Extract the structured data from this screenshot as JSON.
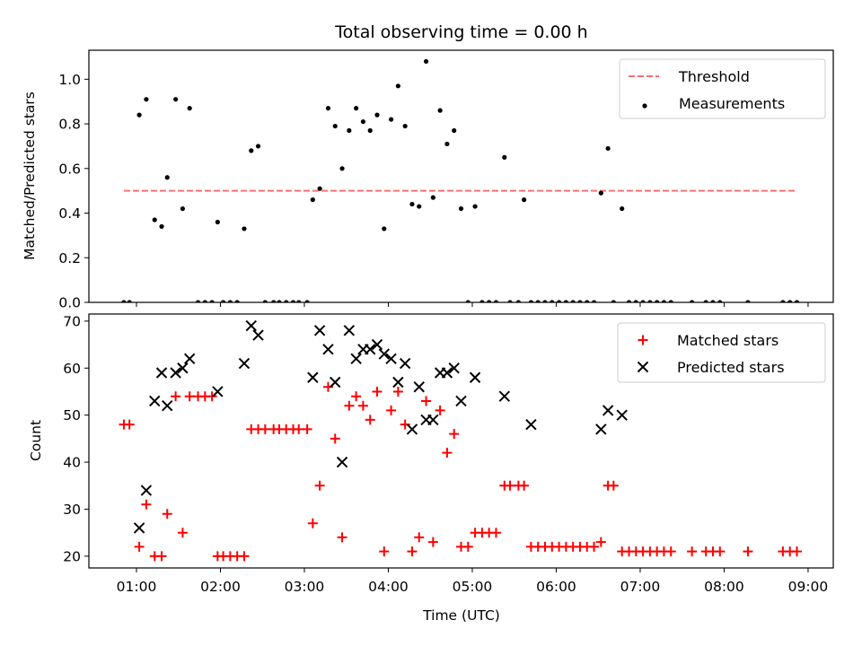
{
  "title": "Total observing time = 0.00 h",
  "xlabel": "Time (UTC)",
  "x_tick_labels": [
    "01:00",
    "02:00",
    "03:00",
    "04:00",
    "05:00",
    "06:00",
    "07:00",
    "08:00",
    "09:00"
  ],
  "chart_data": [
    {
      "type": "scatter",
      "ylabel": "Matched/Predicted stars",
      "xlim": [
        "00:26",
        "09:18"
      ],
      "ylim": [
        0,
        1.13
      ],
      "y_ticks": [
        "0.0",
        "0.2",
        "0.4",
        "0.6",
        "0.8",
        "1.0"
      ],
      "legend_position": "top-right",
      "legend": [
        "Threshold",
        "Measurements"
      ],
      "threshold": {
        "name": "Threshold",
        "y": 0.5,
        "x_start": "00:51",
        "x_end": "08:52",
        "color": "#ff7070",
        "style": "dashed"
      },
      "series": [
        {
          "name": "Measurements",
          "color": "#000000",
          "points": [
            [
              "00:51",
              0
            ],
            [
              "00:55",
              0
            ],
            [
              "01:02",
              0.84
            ],
            [
              "01:07",
              0.91
            ],
            [
              "01:13",
              0.37
            ],
            [
              "01:18",
              0.34
            ],
            [
              "01:22",
              0.56
            ],
            [
              "01:28",
              0.91
            ],
            [
              "01:33",
              0.42
            ],
            [
              "01:38",
              0.87
            ],
            [
              "01:44",
              0
            ],
            [
              "01:49",
              0
            ],
            [
              "01:54",
              0
            ],
            [
              "01:58",
              0.36
            ],
            [
              "02:02",
              0
            ],
            [
              "02:07",
              0
            ],
            [
              "02:12",
              0
            ],
            [
              "02:17",
              0.33
            ],
            [
              "02:22",
              0.68
            ],
            [
              "02:27",
              0.7
            ],
            [
              "02:32",
              0
            ],
            [
              "02:38",
              0
            ],
            [
              "02:42",
              0
            ],
            [
              "02:47",
              0
            ],
            [
              "02:52",
              0
            ],
            [
              "02:56",
              0
            ],
            [
              "03:02",
              0
            ],
            [
              "03:06",
              0.46
            ],
            [
              "03:11",
              0.51
            ],
            [
              "03:17",
              0.87
            ],
            [
              "03:22",
              0.79
            ],
            [
              "03:27",
              0.6
            ],
            [
              "03:32",
              0.77
            ],
            [
              "03:37",
              0.87
            ],
            [
              "03:42",
              0.81
            ],
            [
              "03:47",
              0.77
            ],
            [
              "03:52",
              0.84
            ],
            [
              "03:57",
              0.33
            ],
            [
              "04:02",
              0.82
            ],
            [
              "04:07",
              0.97
            ],
            [
              "04:12",
              0.79
            ],
            [
              "04:17",
              0.44
            ],
            [
              "04:22",
              0.43
            ],
            [
              "04:27",
              1.08
            ],
            [
              "04:32",
              0.47
            ],
            [
              "04:37",
              0.86
            ],
            [
              "04:42",
              0.71
            ],
            [
              "04:47",
              0.77
            ],
            [
              "04:52",
              0.42
            ],
            [
              "04:57",
              0
            ],
            [
              "05:02",
              0.43
            ],
            [
              "05:07",
              0
            ],
            [
              "05:12",
              0
            ],
            [
              "05:17",
              0
            ],
            [
              "05:23",
              0.65
            ],
            [
              "05:27",
              0
            ],
            [
              "05:33",
              0
            ],
            [
              "05:37",
              0.46
            ],
            [
              "05:42",
              0
            ],
            [
              "05:47",
              0
            ],
            [
              "05:52",
              0
            ],
            [
              "05:57",
              0
            ],
            [
              "06:02",
              0
            ],
            [
              "06:07",
              0
            ],
            [
              "06:12",
              0
            ],
            [
              "06:17",
              0
            ],
            [
              "06:22",
              0
            ],
            [
              "06:27",
              0
            ],
            [
              "06:32",
              0.49
            ],
            [
              "06:37",
              0.69
            ],
            [
              "06:41",
              0
            ],
            [
              "06:47",
              0.42
            ],
            [
              "06:52",
              0
            ],
            [
              "06:57",
              0
            ],
            [
              "07:02",
              0
            ],
            [
              "07:07",
              0
            ],
            [
              "07:12",
              0
            ],
            [
              "07:17",
              0
            ],
            [
              "07:22",
              0
            ],
            [
              "07:37",
              0
            ],
            [
              "07:47",
              0
            ],
            [
              "07:52",
              0
            ],
            [
              "07:57",
              0
            ],
            [
              "08:17",
              0
            ],
            [
              "08:42",
              0
            ],
            [
              "08:47",
              0
            ],
            [
              "08:52",
              0
            ]
          ]
        }
      ]
    },
    {
      "type": "scatter",
      "ylabel": "Count",
      "xlim": [
        "00:26",
        "09:18"
      ],
      "ylim": [
        17.5,
        71.5
      ],
      "y_ticks": [
        "20",
        "30",
        "40",
        "50",
        "60",
        "70"
      ],
      "legend_position": "top-right",
      "legend": [
        "Matched stars",
        "Predicted stars"
      ],
      "series": [
        {
          "name": "Matched stars",
          "color": "#ff0000",
          "marker": "+",
          "points": [
            [
              "00:51",
              48
            ],
            [
              "00:55",
              48
            ],
            [
              "01:02",
              22
            ],
            [
              "01:07",
              31
            ],
            [
              "01:13",
              20
            ],
            [
              "01:18",
              20
            ],
            [
              "01:22",
              29
            ],
            [
              "01:28",
              54
            ],
            [
              "01:33",
              25
            ],
            [
              "01:38",
              54
            ],
            [
              "01:44",
              54
            ],
            [
              "01:49",
              54
            ],
            [
              "01:54",
              54
            ],
            [
              "01:58",
              20
            ],
            [
              "02:02",
              20
            ],
            [
              "02:07",
              20
            ],
            [
              "02:12",
              20
            ],
            [
              "02:17",
              20
            ],
            [
              "02:22",
              47
            ],
            [
              "02:27",
              47
            ],
            [
              "02:32",
              47
            ],
            [
              "02:38",
              47
            ],
            [
              "02:42",
              47
            ],
            [
              "02:47",
              47
            ],
            [
              "02:52",
              47
            ],
            [
              "02:56",
              47
            ],
            [
              "03:02",
              47
            ],
            [
              "03:06",
              27
            ],
            [
              "03:11",
              35
            ],
            [
              "03:17",
              56
            ],
            [
              "03:22",
              45
            ],
            [
              "03:27",
              24
            ],
            [
              "03:32",
              52
            ],
            [
              "03:37",
              54
            ],
            [
              "03:42",
              52
            ],
            [
              "03:47",
              49
            ],
            [
              "03:52",
              55
            ],
            [
              "03:57",
              21
            ],
            [
              "04:02",
              51
            ],
            [
              "04:07",
              55
            ],
            [
              "04:12",
              48
            ],
            [
              "04:17",
              21
            ],
            [
              "04:22",
              24
            ],
            [
              "04:27",
              53
            ],
            [
              "04:32",
              23
            ],
            [
              "04:37",
              51
            ],
            [
              "04:42",
              42
            ],
            [
              "04:47",
              46
            ],
            [
              "04:52",
              22
            ],
            [
              "04:57",
              22
            ],
            [
              "05:02",
              25
            ],
            [
              "05:07",
              25
            ],
            [
              "05:12",
              25
            ],
            [
              "05:17",
              25
            ],
            [
              "05:23",
              35
            ],
            [
              "05:27",
              35
            ],
            [
              "05:33",
              35
            ],
            [
              "05:37",
              35
            ],
            [
              "05:42",
              22
            ],
            [
              "05:47",
              22
            ],
            [
              "05:52",
              22
            ],
            [
              "05:57",
              22
            ],
            [
              "06:02",
              22
            ],
            [
              "06:07",
              22
            ],
            [
              "06:12",
              22
            ],
            [
              "06:17",
              22
            ],
            [
              "06:22",
              22
            ],
            [
              "06:27",
              22
            ],
            [
              "06:32",
              23
            ],
            [
              "06:37",
              35
            ],
            [
              "06:41",
              35
            ],
            [
              "06:47",
              21
            ],
            [
              "06:52",
              21
            ],
            [
              "06:57",
              21
            ],
            [
              "07:02",
              21
            ],
            [
              "07:07",
              21
            ],
            [
              "07:12",
              21
            ],
            [
              "07:17",
              21
            ],
            [
              "07:22",
              21
            ],
            [
              "07:37",
              21
            ],
            [
              "07:47",
              21
            ],
            [
              "07:52",
              21
            ],
            [
              "07:57",
              21
            ],
            [
              "08:17",
              21
            ],
            [
              "08:42",
              21
            ],
            [
              "08:47",
              21
            ],
            [
              "08:52",
              21
            ]
          ]
        },
        {
          "name": "Predicted stars",
          "color": "#000000",
          "marker": "x",
          "points": [
            [
              "01:02",
              26
            ],
            [
              "01:07",
              34
            ],
            [
              "01:13",
              53
            ],
            [
              "01:18",
              59
            ],
            [
              "01:22",
              52
            ],
            [
              "01:28",
              59
            ],
            [
              "01:33",
              60
            ],
            [
              "01:38",
              62
            ],
            [
              "01:58",
              55
            ],
            [
              "02:17",
              61
            ],
            [
              "02:22",
              69
            ],
            [
              "02:27",
              67
            ],
            [
              "03:06",
              58
            ],
            [
              "03:11",
              68
            ],
            [
              "03:17",
              64
            ],
            [
              "03:22",
              57
            ],
            [
              "03:27",
              40
            ],
            [
              "03:32",
              68
            ],
            [
              "03:37",
              62
            ],
            [
              "03:42",
              64
            ],
            [
              "03:47",
              64
            ],
            [
              "03:52",
              65
            ],
            [
              "03:57",
              63
            ],
            [
              "04:02",
              62
            ],
            [
              "04:07",
              57
            ],
            [
              "04:12",
              61
            ],
            [
              "04:17",
              47
            ],
            [
              "04:22",
              56
            ],
            [
              "04:27",
              49
            ],
            [
              "04:32",
              49
            ],
            [
              "04:37",
              59
            ],
            [
              "04:42",
              59
            ],
            [
              "04:47",
              60
            ],
            [
              "04:52",
              53
            ],
            [
              "05:02",
              58
            ],
            [
              "05:23",
              54
            ],
            [
              "05:42",
              48
            ],
            [
              "06:32",
              47
            ],
            [
              "06:37",
              51
            ],
            [
              "06:47",
              50
            ]
          ]
        }
      ]
    }
  ]
}
